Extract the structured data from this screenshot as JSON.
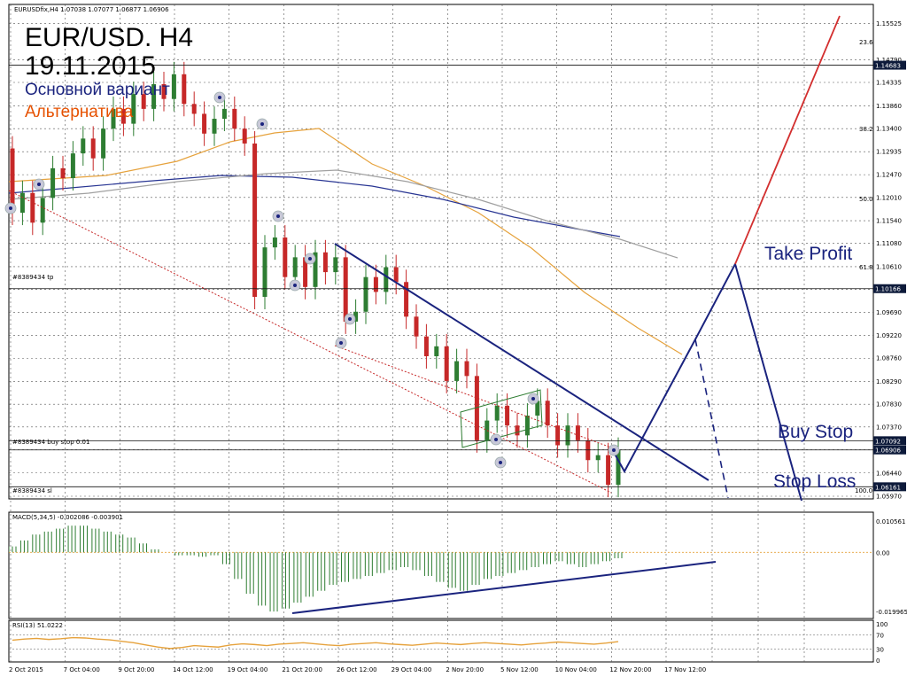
{
  "chart": {
    "header": "EURUSDfix,H4  1.07038 1.07077 1.06877 1.06906",
    "title_line1": "EUR/USD. H4",
    "title_line2": "19.11.2015",
    "legend_main": "Основной вариант",
    "legend_alt": "Альтернатива",
    "colors": {
      "main": "#1a237e",
      "alt": "#e65100",
      "bull": "#2e7d32",
      "bear": "#c62828",
      "ma_orange": "#e6a23c",
      "ma_navy": "#283593",
      "ma_gray": "#a0a0a0",
      "target_red": "#d32f2f",
      "zero_line": "#e6a23c"
    },
    "labels": {
      "take_profit": "Take Profit",
      "buy_stop": "Buy Stop",
      "stop_loss": "Stop Loss"
    },
    "order_labels": {
      "tp": "#8389434 tp",
      "buy": "#8389434 buy stop 0.01",
      "sl": "#8389434 sl"
    },
    "fib_labels": [
      "23.6",
      "38.2",
      "50.0",
      "61.8",
      "100.0"
    ],
    "price_ticks": [
      "1.15525",
      "1.14790",
      "1.14335",
      "1.13860",
      "1.13400",
      "1.12935",
      "1.12470",
      "1.12010",
      "1.11540",
      "1.11080",
      "1.10610",
      "1.10150",
      "1.09690",
      "1.09220",
      "1.08760",
      "1.08290",
      "1.07830",
      "1.07370",
      "1.06910",
      "1.06440",
      "1.05970"
    ],
    "highlight_prices": [
      {
        "value": "1.14683",
        "price": 1.14683
      },
      {
        "value": "1.10166",
        "price": 1.10166
      },
      {
        "value": "1.07092",
        "price": 1.07092
      },
      {
        "value": "1.06906",
        "price": 1.06906
      },
      {
        "value": "1.06161",
        "price": 1.06161
      }
    ],
    "date_ticks": [
      "2 Oct 2015",
      "7 Oct 04:00",
      "9 Oct 20:00",
      "14 Oct 12:00",
      "19 Oct 04:00",
      "21 Oct 20:00",
      "26 Oct 12:00",
      "29 Oct 04:00",
      "2 Nov 20:00",
      "5 Nov 12:00",
      "10 Nov 04:00",
      "12 Nov 20:00",
      "17 Nov 12:00"
    ],
    "macd": {
      "label": "MACD(5,34,5) -0.002086 -0.003901",
      "ticks": [
        "0.010561",
        "0.00",
        "-0.019965"
      ]
    },
    "rsi": {
      "label": "RSI(13) 51.0222",
      "ticks": [
        "100",
        "70",
        "30",
        "0"
      ]
    }
  },
  "chart_data": {
    "type": "candlestick",
    "symbol": "EURUSDfix",
    "timeframe": "H4",
    "ylim": [
      1.0597,
      1.1575
    ],
    "closes": [
      1.117,
      1.121,
      1.115,
      1.12,
      1.126,
      1.124,
      1.129,
      1.132,
      1.128,
      1.134,
      1.138,
      1.135,
      1.141,
      1.138,
      1.143,
      1.14,
      1.145,
      1.139,
      1.137,
      1.133,
      1.136,
      1.138,
      1.134,
      1.131,
      1.1,
      1.11,
      1.112,
      1.104,
      1.108,
      1.102,
      1.109,
      1.105,
      1.108,
      1.095,
      1.097,
      1.104,
      1.101,
      1.106,
      1.103,
      1.096,
      1.092,
      1.088,
      1.09,
      1.083,
      1.087,
      1.084,
      1.071,
      1.075,
      1.078,
      1.074,
      1.072,
      1.076,
      1.079,
      1.074,
      1.07,
      1.074,
      1.071,
      1.067,
      1.068,
      1.062,
      1.0691
    ],
    "macd_hist": [
      0.002,
      0.004,
      0.006,
      0.007,
      0.008,
      0.009,
      0.009,
      0.008,
      0.007,
      0.006,
      0.005,
      0.003,
      0.001,
      0.0,
      -0.001,
      -0.001,
      -0.0015,
      -0.001,
      -0.004,
      -0.009,
      -0.014,
      -0.018,
      -0.02,
      -0.019,
      -0.017,
      -0.015,
      -0.013,
      -0.011,
      -0.01,
      -0.009,
      -0.008,
      -0.007,
      -0.006,
      -0.005,
      -0.006,
      -0.008,
      -0.01,
      -0.012,
      -0.013,
      -0.011,
      -0.009,
      -0.008,
      -0.007,
      -0.006,
      -0.005,
      -0.004,
      -0.003,
      -0.004,
      -0.005,
      -0.004,
      -0.003,
      -0.002
    ],
    "macd_ylim": [
      -0.019965,
      0.010561
    ],
    "rsi": [
      55,
      58,
      60,
      57,
      59,
      62,
      61,
      58,
      56,
      52,
      48,
      42,
      36,
      32,
      35,
      40,
      38,
      36,
      42,
      45,
      43,
      40,
      44,
      46,
      48,
      45,
      42,
      40,
      44,
      46,
      48,
      45,
      43,
      41,
      44,
      47,
      45,
      43,
      46,
      48,
      46,
      44,
      42,
      45,
      47,
      50,
      48,
      46,
      44,
      47,
      51
    ],
    "rsi_ylim": [
      0,
      100
    ]
  }
}
